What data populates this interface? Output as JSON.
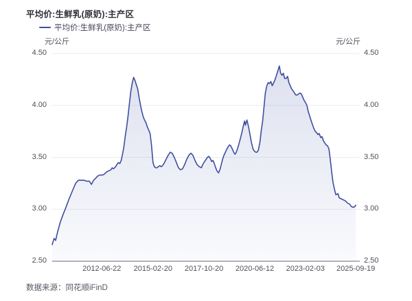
{
  "source": {
    "label": "数据来源：同花顺iFinD"
  },
  "chart_data": {
    "type": "area",
    "title": "平均价:生鲜乳(原奶):主产区",
    "unit_left": "元/公斤",
    "unit_right": "元/公斤",
    "xlabel": "",
    "ylabel": "元/公斤",
    "ylim": [
      2.5,
      4.5
    ],
    "y_ticks": [
      2.5,
      3.0,
      3.5,
      4.0,
      4.5
    ],
    "y_tick_labels": [
      "2.50",
      "3.00",
      "3.50",
      "4.00",
      "4.50"
    ],
    "x_tick_labels": [
      "2012-06-22",
      "2015-02-20",
      "2017-10-20",
      "2020-06-12",
      "2023-02-03",
      "2025-09-19"
    ],
    "x_tick_positions": [
      2012.47,
      2015.14,
      2017.8,
      2020.45,
      2023.09,
      2025.72
    ],
    "xlim": [
      2009.88,
      2025.93
    ],
    "grid": true,
    "legend_position": "top-left",
    "line_color": "#3e4e9e",
    "fill_top": "rgba(88,104,178,0.20)",
    "fill_bottom": "rgba(88,104,178,0.03)",
    "grid_color": "#ebebf1",
    "axis_line_color": "#b3b3bf",
    "series": [
      {
        "name": "平均价:生鲜乳(原奶):主产区",
        "points": [
          [
            2009.88,
            2.66
          ],
          [
            2009.98,
            2.72
          ],
          [
            2010.06,
            2.7
          ],
          [
            2010.16,
            2.78
          ],
          [
            2010.31,
            2.88
          ],
          [
            2010.45,
            2.95
          ],
          [
            2010.6,
            3.02
          ],
          [
            2010.74,
            3.09
          ],
          [
            2010.92,
            3.17
          ],
          [
            2011.1,
            3.25
          ],
          [
            2011.25,
            3.28
          ],
          [
            2011.39,
            3.28
          ],
          [
            2011.53,
            3.28
          ],
          [
            2011.68,
            3.27
          ],
          [
            2011.82,
            3.27
          ],
          [
            2011.93,
            3.24
          ],
          [
            2012.04,
            3.28
          ],
          [
            2012.15,
            3.3
          ],
          [
            2012.25,
            3.32
          ],
          [
            2012.36,
            3.33
          ],
          [
            2012.51,
            3.33
          ],
          [
            2012.61,
            3.34
          ],
          [
            2012.72,
            3.36
          ],
          [
            2012.83,
            3.37
          ],
          [
            2012.94,
            3.38
          ],
          [
            2013.01,
            3.4
          ],
          [
            2013.08,
            3.39
          ],
          [
            2013.19,
            3.41
          ],
          [
            2013.26,
            3.43
          ],
          [
            2013.33,
            3.45
          ],
          [
            2013.41,
            3.44
          ],
          [
            2013.48,
            3.47
          ],
          [
            2013.55,
            3.53
          ],
          [
            2013.62,
            3.6
          ],
          [
            2013.69,
            3.7
          ],
          [
            2013.77,
            3.8
          ],
          [
            2013.84,
            3.9
          ],
          [
            2013.91,
            4.02
          ],
          [
            2013.98,
            4.13
          ],
          [
            2014.05,
            4.21
          ],
          [
            2014.13,
            4.27
          ],
          [
            2014.2,
            4.24
          ],
          [
            2014.27,
            4.2
          ],
          [
            2014.34,
            4.16
          ],
          [
            2014.42,
            4.07
          ],
          [
            2014.49,
            4.0
          ],
          [
            2014.56,
            3.94
          ],
          [
            2014.63,
            3.89
          ],
          [
            2014.7,
            3.86
          ],
          [
            2014.78,
            3.83
          ],
          [
            2014.85,
            3.79
          ],
          [
            2014.92,
            3.76
          ],
          [
            2014.99,
            3.73
          ],
          [
            2015.06,
            3.62
          ],
          [
            2015.14,
            3.45
          ],
          [
            2015.21,
            3.41
          ],
          [
            2015.28,
            3.4
          ],
          [
            2015.35,
            3.4
          ],
          [
            2015.42,
            3.41
          ],
          [
            2015.5,
            3.42
          ],
          [
            2015.57,
            3.41
          ],
          [
            2015.64,
            3.42
          ],
          [
            2015.71,
            3.44
          ],
          [
            2015.82,
            3.48
          ],
          [
            2015.93,
            3.52
          ],
          [
            2016.04,
            3.55
          ],
          [
            2016.14,
            3.54
          ],
          [
            2016.25,
            3.5
          ],
          [
            2016.36,
            3.45
          ],
          [
            2016.47,
            3.4
          ],
          [
            2016.58,
            3.38
          ],
          [
            2016.68,
            3.39
          ],
          [
            2016.79,
            3.43
          ],
          [
            2016.9,
            3.48
          ],
          [
            2017.01,
            3.52
          ],
          [
            2017.12,
            3.54
          ],
          [
            2017.22,
            3.52
          ],
          [
            2017.33,
            3.47
          ],
          [
            2017.44,
            3.43
          ],
          [
            2017.55,
            3.41
          ],
          [
            2017.66,
            3.4
          ],
          [
            2017.76,
            3.44
          ],
          [
            2017.87,
            3.47
          ],
          [
            2017.98,
            3.5
          ],
          [
            2018.05,
            3.51
          ],
          [
            2018.13,
            3.49
          ],
          [
            2018.2,
            3.46
          ],
          [
            2018.27,
            3.47
          ],
          [
            2018.34,
            3.44
          ],
          [
            2018.41,
            3.4
          ],
          [
            2018.48,
            3.37
          ],
          [
            2018.56,
            3.35
          ],
          [
            2018.63,
            3.38
          ],
          [
            2018.7,
            3.43
          ],
          [
            2018.77,
            3.48
          ],
          [
            2018.84,
            3.52
          ],
          [
            2018.92,
            3.55
          ],
          [
            2018.99,
            3.58
          ],
          [
            2019.06,
            3.6
          ],
          [
            2019.13,
            3.62
          ],
          [
            2019.2,
            3.61
          ],
          [
            2019.28,
            3.58
          ],
          [
            2019.35,
            3.55
          ],
          [
            2019.42,
            3.53
          ],
          [
            2019.49,
            3.55
          ],
          [
            2019.56,
            3.59
          ],
          [
            2019.64,
            3.64
          ],
          [
            2019.71,
            3.69
          ],
          [
            2019.78,
            3.74
          ],
          [
            2019.85,
            3.8
          ],
          [
            2019.92,
            3.85
          ],
          [
            2019.96,
            3.81
          ],
          [
            2020.04,
            3.86
          ],
          [
            2020.14,
            3.78
          ],
          [
            2020.21,
            3.71
          ],
          [
            2020.28,
            3.64
          ],
          [
            2020.36,
            3.58
          ],
          [
            2020.43,
            3.56
          ],
          [
            2020.5,
            3.55
          ],
          [
            2020.57,
            3.55
          ],
          [
            2020.64,
            3.57
          ],
          [
            2020.72,
            3.65
          ],
          [
            2020.79,
            3.76
          ],
          [
            2020.86,
            3.85
          ],
          [
            2020.93,
            3.98
          ],
          [
            2021.0,
            4.12
          ],
          [
            2021.08,
            4.19
          ],
          [
            2021.15,
            4.22
          ],
          [
            2021.22,
            4.21
          ],
          [
            2021.29,
            4.23
          ],
          [
            2021.36,
            4.19
          ],
          [
            2021.44,
            4.22
          ],
          [
            2021.51,
            4.25
          ],
          [
            2021.58,
            4.29
          ],
          [
            2021.65,
            4.33
          ],
          [
            2021.73,
            4.38
          ],
          [
            2021.8,
            4.31
          ],
          [
            2021.87,
            4.29
          ],
          [
            2021.94,
            4.31
          ],
          [
            2022.01,
            4.26
          ],
          [
            2022.09,
            4.26
          ],
          [
            2022.16,
            4.28
          ],
          [
            2022.23,
            4.22
          ],
          [
            2022.3,
            4.19
          ],
          [
            2022.37,
            4.16
          ],
          [
            2022.45,
            4.14
          ],
          [
            2022.52,
            4.12
          ],
          [
            2022.59,
            4.1
          ],
          [
            2022.66,
            4.1
          ],
          [
            2022.73,
            4.11
          ],
          [
            2022.81,
            4.12
          ],
          [
            2022.88,
            4.11
          ],
          [
            2022.95,
            4.08
          ],
          [
            2023.02,
            4.05
          ],
          [
            2023.09,
            4.03
          ],
          [
            2023.17,
            4.0
          ],
          [
            2023.24,
            3.94
          ],
          [
            2023.31,
            3.9
          ],
          [
            2023.38,
            3.86
          ],
          [
            2023.45,
            3.82
          ],
          [
            2023.53,
            3.78
          ],
          [
            2023.6,
            3.75
          ],
          [
            2023.67,
            3.74
          ],
          [
            2023.74,
            3.72
          ],
          [
            2023.81,
            3.73
          ],
          [
            2023.89,
            3.69
          ],
          [
            2023.96,
            3.7
          ],
          [
            2024.03,
            3.66
          ],
          [
            2024.1,
            3.64
          ],
          [
            2024.17,
            3.62
          ],
          [
            2024.25,
            3.61
          ],
          [
            2024.32,
            3.58
          ],
          [
            2024.39,
            3.48
          ],
          [
            2024.46,
            3.36
          ],
          [
            2024.53,
            3.26
          ],
          [
            2024.61,
            3.19
          ],
          [
            2024.68,
            3.14
          ],
          [
            2024.79,
            3.15
          ],
          [
            2024.86,
            3.11
          ],
          [
            2024.97,
            3.1
          ],
          [
            2025.08,
            3.09
          ],
          [
            2025.18,
            3.08
          ],
          [
            2025.29,
            3.06
          ],
          [
            2025.4,
            3.05
          ],
          [
            2025.47,
            3.03
          ],
          [
            2025.55,
            3.02
          ],
          [
            2025.62,
            3.02
          ],
          [
            2025.69,
            3.03
          ],
          [
            2025.72,
            3.04
          ]
        ]
      }
    ]
  }
}
